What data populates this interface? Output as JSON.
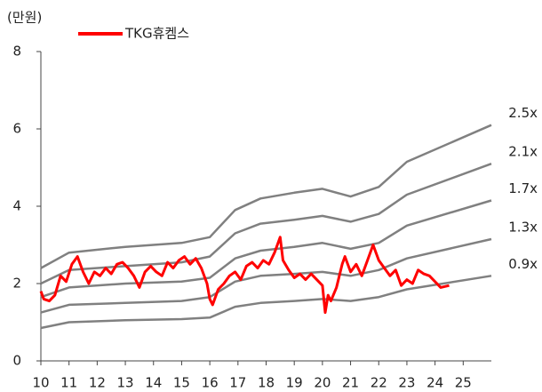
{
  "chart_data": {
    "type": "line",
    "y_unit": "(만원)",
    "xlim": [
      10,
      26
    ],
    "ylim": [
      0,
      8
    ],
    "xticks": [
      10,
      11,
      12,
      13,
      14,
      15,
      16,
      17,
      18,
      19,
      20,
      21,
      22,
      23,
      24,
      25
    ],
    "yticks": [
      0,
      2,
      4,
      6,
      8
    ],
    "legend": "top-left",
    "series": [
      {
        "name": "TKG휴켐스",
        "color": "#ff0000",
        "legend": true,
        "x": [
          10.0,
          10.1,
          10.3,
          10.5,
          10.7,
          10.9,
          11.1,
          11.3,
          11.5,
          11.7,
          11.9,
          12.1,
          12.3,
          12.5,
          12.7,
          12.9,
          13.1,
          13.3,
          13.5,
          13.7,
          13.9,
          14.1,
          14.3,
          14.5,
          14.7,
          14.9,
          15.1,
          15.3,
          15.5,
          15.7,
          15.9,
          16.0,
          16.1,
          16.3,
          16.5,
          16.7,
          16.9,
          17.1,
          17.3,
          17.5,
          17.7,
          17.9,
          18.1,
          18.3,
          18.5,
          18.6,
          18.8,
          19.0,
          19.2,
          19.4,
          19.6,
          19.8,
          20.0,
          20.1,
          20.2,
          20.3,
          20.5,
          20.7,
          20.8,
          21.0,
          21.2,
          21.4,
          21.6,
          21.8,
          22.0,
          22.2,
          22.4,
          22.6,
          22.8,
          23.0,
          23.2,
          23.4,
          23.6,
          23.8,
          24.0,
          24.2,
          24.5
        ],
        "values": [
          1.8,
          1.6,
          1.55,
          1.7,
          2.2,
          2.05,
          2.5,
          2.7,
          2.3,
          2.0,
          2.3,
          2.2,
          2.4,
          2.25,
          2.5,
          2.55,
          2.4,
          2.2,
          1.9,
          2.3,
          2.45,
          2.3,
          2.2,
          2.55,
          2.4,
          2.6,
          2.7,
          2.5,
          2.65,
          2.4,
          2.0,
          1.6,
          1.45,
          1.85,
          2.0,
          2.2,
          2.3,
          2.1,
          2.45,
          2.55,
          2.4,
          2.6,
          2.5,
          2.8,
          3.2,
          2.6,
          2.35,
          2.15,
          2.25,
          2.1,
          2.25,
          2.1,
          1.95,
          1.25,
          1.7,
          1.55,
          1.9,
          2.5,
          2.7,
          2.3,
          2.5,
          2.2,
          2.6,
          3.0,
          2.6,
          2.4,
          2.2,
          2.35,
          1.95,
          2.1,
          2.0,
          2.35,
          2.25,
          2.2,
          2.05,
          1.9,
          1.95
        ]
      },
      {
        "name": "2.5x",
        "color": "#808080",
        "x": [
          10,
          11,
          13,
          15,
          16,
          16.9,
          17.8,
          19,
          20,
          21,
          22,
          23,
          26
        ],
        "values": [
          2.4,
          2.8,
          2.95,
          3.05,
          3.2,
          3.9,
          4.2,
          4.35,
          4.45,
          4.25,
          4.5,
          5.15,
          6.1
        ]
      },
      {
        "name": "2.1x",
        "color": "#808080",
        "x": [
          10,
          11,
          13,
          15,
          16,
          16.9,
          17.8,
          19,
          20,
          21,
          22,
          23,
          26
        ],
        "values": [
          2.0,
          2.35,
          2.45,
          2.55,
          2.7,
          3.3,
          3.55,
          3.65,
          3.75,
          3.6,
          3.8,
          4.3,
          5.1
        ]
      },
      {
        "name": "1.7x",
        "color": "#808080",
        "x": [
          10,
          11,
          13,
          15,
          16,
          16.9,
          17.8,
          19,
          20,
          21,
          22,
          23,
          26
        ],
        "values": [
          1.65,
          1.9,
          2.0,
          2.05,
          2.15,
          2.65,
          2.85,
          2.95,
          3.05,
          2.9,
          3.05,
          3.5,
          4.15
        ]
      },
      {
        "name": "1.3x",
        "color": "#808080",
        "x": [
          10,
          11,
          13,
          15,
          16,
          16.9,
          17.8,
          19,
          20,
          21,
          22,
          23,
          26
        ],
        "values": [
          1.25,
          1.45,
          1.5,
          1.55,
          1.65,
          2.05,
          2.2,
          2.25,
          2.3,
          2.2,
          2.35,
          2.65,
          3.15
        ]
      },
      {
        "name": "0.9x",
        "color": "#808080",
        "x": [
          10,
          11,
          13,
          15,
          16,
          16.9,
          17.8,
          19,
          20,
          21,
          22,
          23,
          26
        ],
        "values": [
          0.85,
          1.0,
          1.05,
          1.08,
          1.12,
          1.4,
          1.5,
          1.55,
          1.6,
          1.55,
          1.65,
          1.85,
          2.2
        ]
      }
    ]
  }
}
